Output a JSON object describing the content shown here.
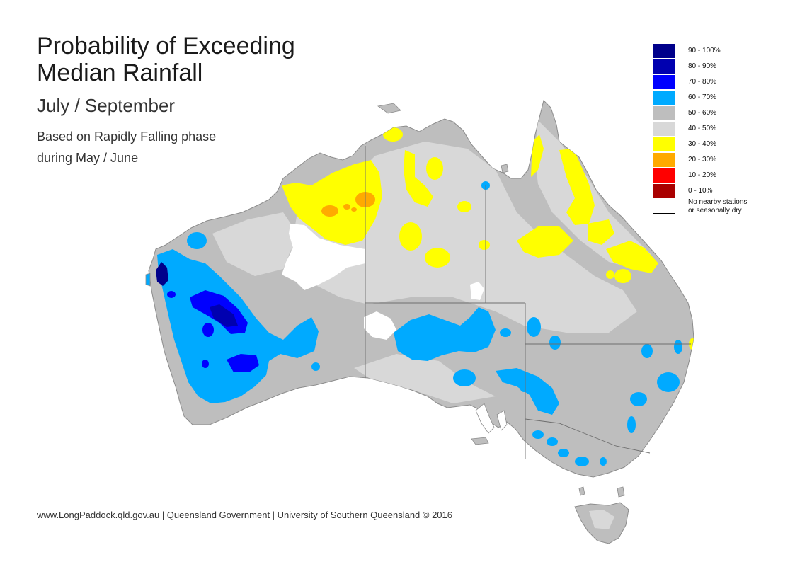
{
  "title_line1": "Probability of Exceeding",
  "title_line2": "Median Rainfall",
  "subtitle": "July / September",
  "description_line1": "Based on Rapidly Falling phase",
  "description_line2": "during May / June",
  "footer": "www.LongPaddock.qld.gov.au | Queensland Government | University of Southern Queensland © 2016",
  "legend": [
    {
      "label": "90 - 100%",
      "color": "#00008b"
    },
    {
      "label": "80 - 90%",
      "color": "#0000b0"
    },
    {
      "label": "70 - 80%",
      "color": "#0000ff"
    },
    {
      "label": "60 - 70%",
      "color": "#00aaff"
    },
    {
      "label": "50 - 60%",
      "color": "#bebebe"
    },
    {
      "label": "40 - 50%",
      "color": "#d8d8d8"
    },
    {
      "label": "30 - 40%",
      "color": "#ffff00"
    },
    {
      "label": "20 - 30%",
      "color": "#ffaa00"
    },
    {
      "label": "10 - 20%",
      "color": "#ff0000"
    },
    {
      "label": "0 - 10%",
      "color": "#aa0000"
    },
    {
      "label": "No nearby stations",
      "label2": "or seasonally dry",
      "color": "#ffffff"
    }
  ]
}
